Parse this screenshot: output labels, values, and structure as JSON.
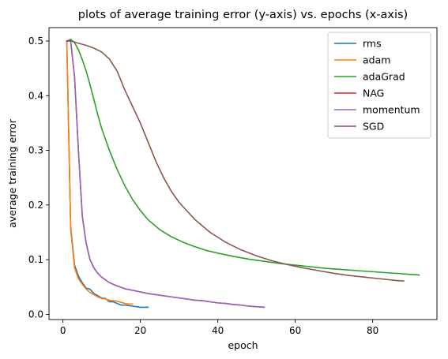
{
  "chart_data": {
    "type": "line",
    "title": "plots of average training error (y-axis) vs. epochs (x-axis)",
    "xlabel": "epoch",
    "ylabel": "average training error",
    "xlim": [
      -3.6,
      96.6
    ],
    "ylim": [
      -0.0095,
      0.5245
    ],
    "xticks": [
      0,
      20,
      40,
      60,
      80
    ],
    "yticks": [
      0.0,
      0.1,
      0.2,
      0.3,
      0.4,
      0.5
    ],
    "ytick_labels": [
      "0.0",
      "0.1",
      "0.2",
      "0.3",
      "0.4",
      "0.5"
    ],
    "grid": false,
    "legend_position": "top-right",
    "series": [
      {
        "name": "rms",
        "color": "#1f77b4",
        "x": [
          1,
          2,
          3,
          4,
          5,
          6,
          7,
          8,
          9,
          10,
          11,
          12,
          13,
          14,
          15,
          16,
          17,
          18,
          19,
          20,
          21,
          22
        ],
        "y": [
          0.5,
          0.16,
          0.09,
          0.07,
          0.058,
          0.048,
          0.046,
          0.038,
          0.034,
          0.03,
          0.029,
          0.023,
          0.023,
          0.02,
          0.017,
          0.017,
          0.016,
          0.015,
          0.014,
          0.013,
          0.013,
          0.013
        ]
      },
      {
        "name": "adam",
        "color": "#ff7f0e",
        "x": [
          1,
          2,
          3,
          4,
          5,
          6,
          7,
          8,
          9,
          10,
          11,
          12,
          13,
          14,
          15,
          16,
          17,
          18
        ],
        "y": [
          0.5,
          0.155,
          0.085,
          0.065,
          0.055,
          0.046,
          0.04,
          0.036,
          0.032,
          0.029,
          0.028,
          0.026,
          0.025,
          0.024,
          0.022,
          0.02,
          0.019,
          0.019
        ]
      },
      {
        "name": "adaGrad",
        "color": "#2ca02c",
        "x": [
          1,
          2,
          3,
          4,
          5,
          6,
          7,
          8,
          9,
          10,
          12,
          14,
          16,
          18,
          20,
          22,
          25,
          28,
          31,
          34,
          37,
          40,
          44,
          48,
          52,
          56,
          60,
          64,
          68,
          72,
          76,
          80,
          84,
          88,
          92
        ],
        "y": [
          0.5,
          0.503,
          0.497,
          0.484,
          0.466,
          0.445,
          0.42,
          0.393,
          0.365,
          0.34,
          0.3,
          0.265,
          0.235,
          0.21,
          0.19,
          0.173,
          0.155,
          0.142,
          0.132,
          0.124,
          0.117,
          0.112,
          0.106,
          0.101,
          0.097,
          0.093,
          0.09,
          0.087,
          0.084,
          0.082,
          0.08,
          0.078,
          0.076,
          0.074,
          0.072
        ]
      },
      {
        "name": "NAG",
        "color": "#d62728",
        "x": [
          1,
          2,
          3,
          4,
          5,
          6,
          7,
          8,
          9,
          10,
          12,
          14,
          16,
          18,
          20,
          22,
          24,
          26,
          28,
          30,
          32,
          34,
          36,
          38,
          40,
          42,
          44,
          46,
          48,
          50,
          52
        ],
        "y": [
          0.5,
          0.5,
          0.435,
          0.3,
          0.18,
          0.13,
          0.1,
          0.085,
          0.075,
          0.068,
          0.058,
          0.052,
          0.047,
          0.044,
          0.041,
          0.038,
          0.036,
          0.034,
          0.032,
          0.03,
          0.028,
          0.026,
          0.025,
          0.023,
          0.021,
          0.02,
          0.018,
          0.017,
          0.015,
          0.014,
          0.013
        ]
      },
      {
        "name": "momentum",
        "color": "#9467bd",
        "x": [
          1,
          2,
          3,
          4,
          5,
          6,
          7,
          8,
          9,
          10,
          12,
          14,
          16,
          18,
          20,
          22,
          24,
          26,
          28,
          30,
          32,
          34,
          36,
          38,
          40,
          42,
          44,
          46,
          48,
          50,
          52
        ],
        "y": [
          0.5,
          0.5,
          0.435,
          0.3,
          0.18,
          0.13,
          0.1,
          0.085,
          0.075,
          0.068,
          0.058,
          0.052,
          0.047,
          0.044,
          0.041,
          0.038,
          0.036,
          0.034,
          0.032,
          0.03,
          0.028,
          0.026,
          0.025,
          0.023,
          0.021,
          0.02,
          0.018,
          0.017,
          0.015,
          0.014,
          0.013
        ]
      },
      {
        "name": "SGD",
        "color": "#8c564b",
        "x": [
          1,
          2,
          4,
          6,
          8,
          10,
          12,
          14,
          16,
          18,
          20,
          22,
          24,
          26,
          28,
          30,
          34,
          38,
          42,
          46,
          50,
          54,
          58,
          62,
          66,
          70,
          74,
          78,
          82,
          86,
          88
        ],
        "y": [
          0.5,
          0.5,
          0.496,
          0.492,
          0.487,
          0.48,
          0.467,
          0.445,
          0.41,
          0.38,
          0.35,
          0.315,
          0.28,
          0.25,
          0.225,
          0.205,
          0.174,
          0.15,
          0.132,
          0.118,
          0.107,
          0.098,
          0.091,
          0.085,
          0.08,
          0.075,
          0.071,
          0.068,
          0.065,
          0.062,
          0.061
        ]
      }
    ]
  }
}
